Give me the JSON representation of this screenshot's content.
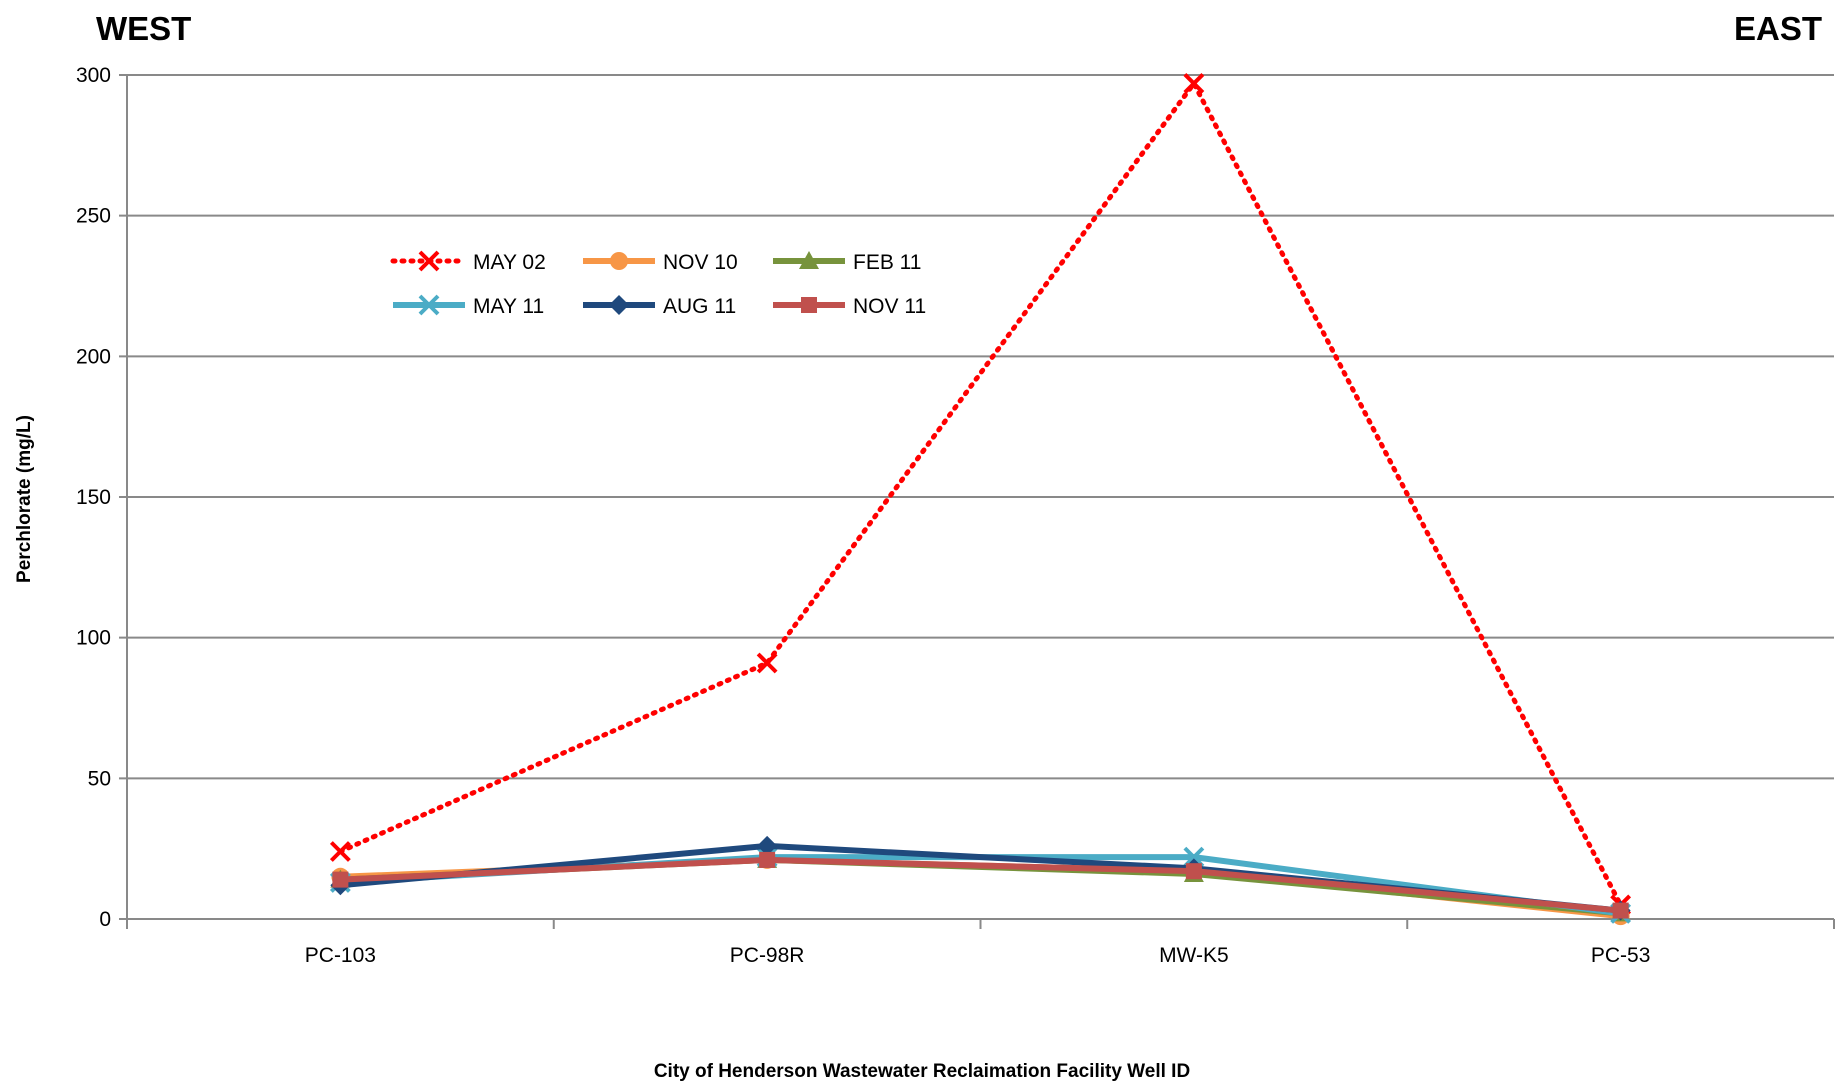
{
  "chart_data": {
    "type": "line",
    "left_label": "WEST",
    "right_label": "EAST",
    "xlabel": "City of Henderson Wastewater Reclaimation Facility Well ID",
    "ylabel": "Perchlorate (mg/L)",
    "categories": [
      "PC-103",
      "PC-98R",
      "MW-K5",
      "PC-53"
    ],
    "ylim": [
      0,
      300
    ],
    "yticks": [
      0,
      50,
      100,
      150,
      200,
      250,
      300
    ],
    "grid": true,
    "legend_position": "upper-left inside plot",
    "series": [
      {
        "name": "MAY 02",
        "color": "#ff0000",
        "marker": "x",
        "dash": "dotted",
        "values": [
          24,
          91,
          297,
          5
        ]
      },
      {
        "name": "NOV 10",
        "color": "#f79646",
        "marker": "circle",
        "dash": "solid",
        "values": [
          15,
          21,
          17,
          1
        ]
      },
      {
        "name": "FEB 11",
        "color": "#77933c",
        "marker": "triangle",
        "dash": "solid",
        "values": [
          14,
          21,
          16,
          2
        ]
      },
      {
        "name": "MAY 11",
        "color": "#4bacc6",
        "marker": "x",
        "dash": "solid",
        "values": [
          13,
          22,
          22,
          2
        ]
      },
      {
        "name": "AUG 11",
        "color": "#1f497d",
        "marker": "diamond",
        "dash": "solid",
        "values": [
          12,
          26,
          18,
          3
        ]
      },
      {
        "name": "NOV 11",
        "color": "#c0504d",
        "marker": "square",
        "dash": "solid",
        "values": [
          14,
          21,
          17,
          3
        ]
      }
    ]
  }
}
